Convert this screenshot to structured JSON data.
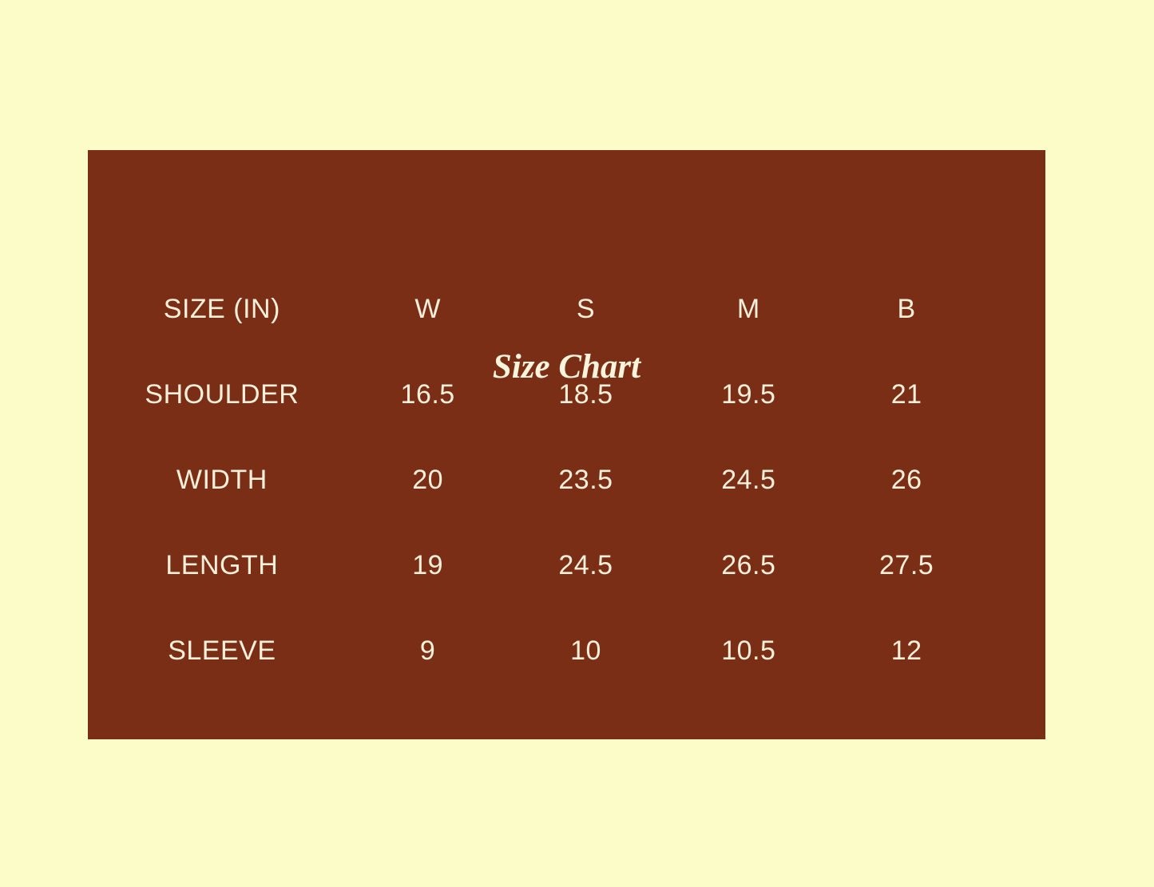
{
  "colors": {
    "page_background": "#FCFCC9",
    "panel_background": "#7B2E16",
    "cell_text": "#F6EFDA",
    "title_text": "#FAF4DC"
  },
  "panel": {
    "title": "Size Chart"
  },
  "chart_data": {
    "type": "table",
    "title": "Size Chart",
    "columns": [
      "SIZE (IN)",
      "W",
      "S",
      "M",
      "B"
    ],
    "rows": [
      [
        "SHOULDER",
        "16.5",
        "18.5",
        "19.5",
        "21"
      ],
      [
        "WIDTH",
        "20",
        "23.5",
        "24.5",
        "26"
      ],
      [
        "LENGTH",
        "19",
        "24.5",
        "26.5",
        "27.5"
      ],
      [
        "SLEEVE",
        "9",
        "10",
        "10.5",
        "12"
      ]
    ],
    "units": "inches",
    "layout": {
      "grid": false,
      "header_row": true,
      "text_alignment": "center"
    }
  }
}
